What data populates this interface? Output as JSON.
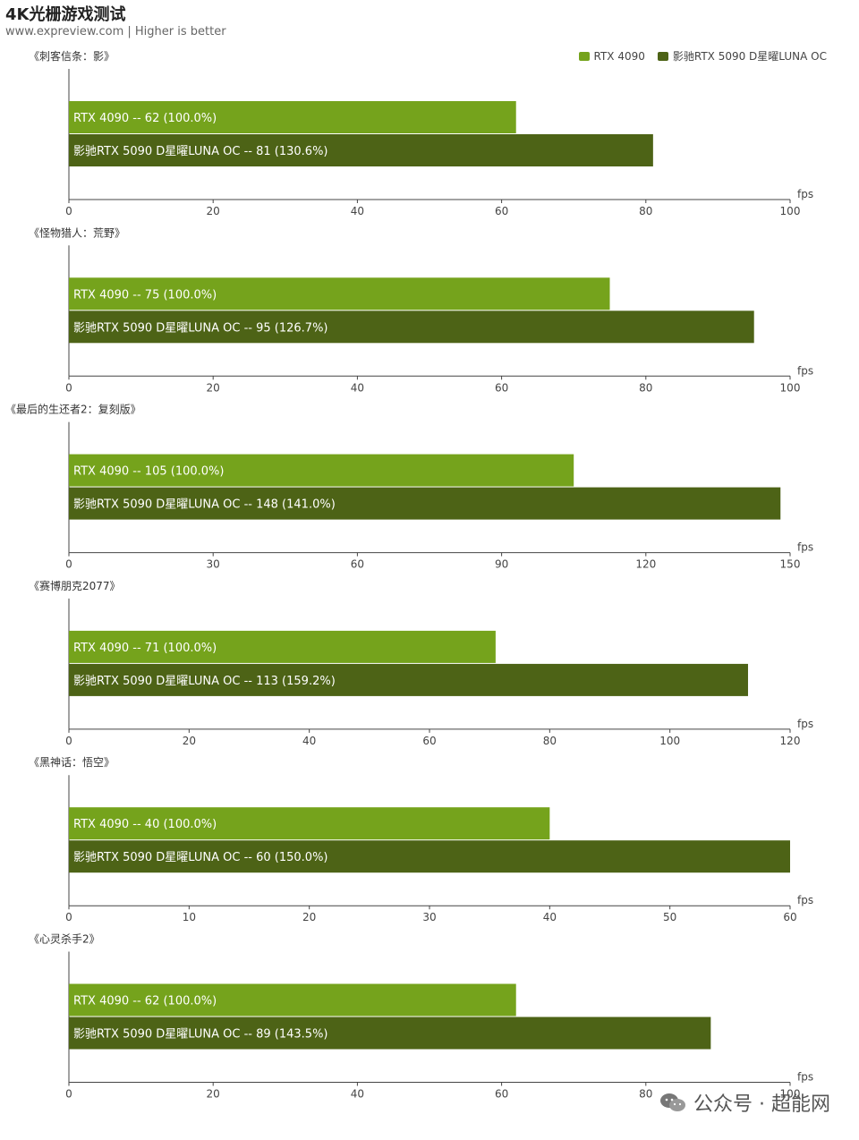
{
  "header": {
    "title": "4K光栅游戏测试",
    "subtitle": "www.expreview.com | Higher is better"
  },
  "colors": {
    "rtx4090": "#75a31c",
    "rtx5090": "#4d6316",
    "axis": "#444444"
  },
  "legend": [
    {
      "name": "RTX 4090",
      "color": "#75a31c"
    },
    {
      "name": "影驰RTX 5090 D星曜LUNA OC",
      "color": "#4d6316"
    }
  ],
  "chart_data": [
    {
      "type": "bar",
      "title": "《刺客信条：影》",
      "xlabel": "fps",
      "xlim": [
        0,
        100
      ],
      "ticks": [
        0,
        20,
        40,
        60,
        80,
        100
      ],
      "series": [
        {
          "name": "RTX 4090",
          "value": 62,
          "pct": "100.0%"
        },
        {
          "name": "影驰RTX 5090 D星曜LUNA OC",
          "value": 81,
          "pct": "130.6%"
        }
      ]
    },
    {
      "type": "bar",
      "title": "《怪物猎人：荒野》",
      "xlabel": "fps",
      "xlim": [
        0,
        100
      ],
      "ticks": [
        0,
        20,
        40,
        60,
        80,
        100
      ],
      "series": [
        {
          "name": "RTX 4090",
          "value": 75,
          "pct": "100.0%"
        },
        {
          "name": "影驰RTX 5090 D星曜LUNA OC",
          "value": 95,
          "pct": "126.7%"
        }
      ]
    },
    {
      "type": "bar",
      "title": "《最后的生还者2：复刻版》",
      "xlabel": "fps",
      "xlim": [
        0,
        150
      ],
      "ticks": [
        0,
        30,
        60,
        90,
        120,
        150
      ],
      "series": [
        {
          "name": "RTX 4090",
          "value": 105,
          "pct": "100.0%"
        },
        {
          "name": "影驰RTX 5090 D星曜LUNA OC",
          "value": 148,
          "pct": "141.0%"
        }
      ]
    },
    {
      "type": "bar",
      "title": "《赛博朋克2077》",
      "xlabel": "fps",
      "xlim": [
        0,
        120
      ],
      "ticks": [
        0,
        20,
        40,
        60,
        80,
        100,
        120
      ],
      "series": [
        {
          "name": "RTX 4090",
          "value": 71,
          "pct": "100.0%"
        },
        {
          "name": "影驰RTX 5090 D星曜LUNA OC",
          "value": 113,
          "pct": "159.2%"
        }
      ]
    },
    {
      "type": "bar",
      "title": "《黑神话：悟空》",
      "xlabel": "fps",
      "xlim": [
        0,
        60
      ],
      "ticks": [
        0,
        10,
        20,
        30,
        40,
        50,
        60
      ],
      "series": [
        {
          "name": "RTX 4090",
          "value": 40,
          "pct": "100.0%"
        },
        {
          "name": "影驰RTX 5090 D星曜LUNA OC",
          "value": 60,
          "pct": "150.0%"
        }
      ]
    },
    {
      "type": "bar",
      "title": "《心灵杀手2》",
      "xlabel": "fps",
      "xlim": [
        0,
        100
      ],
      "ticks": [
        0,
        20,
        40,
        60,
        80,
        100
      ],
      "series": [
        {
          "name": "RTX 4090",
          "value": 62,
          "pct": "100.0%"
        },
        {
          "name": "影驰RTX 5090 D星曜LUNA OC",
          "value": 89,
          "pct": "143.5%"
        }
      ]
    }
  ],
  "watermark": {
    "text": "公众号 · 超能网",
    "icon": "wechat-icon"
  }
}
